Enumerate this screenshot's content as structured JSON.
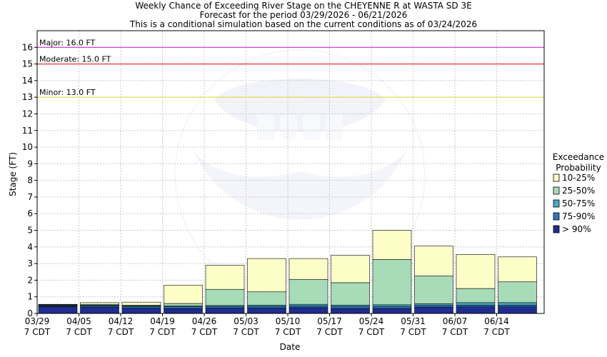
{
  "chart_data": {
    "type": "bar",
    "stacked": true,
    "title_lines": [
      "Weekly Chance of Exceeding River Stage on the CHEYENNE R at WASTA SD 3E",
      "Forecast for the period 03/29/2026 - 06/21/2026",
      "This is a conditional simulation based on the current conditions as of 03/24/2026"
    ],
    "xlabel": "Date",
    "ylabel": "Stage (FT)",
    "ylim": [
      0,
      17
    ],
    "yticks": [
      0,
      1,
      2,
      3,
      4,
      5,
      6,
      7,
      8,
      9,
      10,
      11,
      12,
      13,
      14,
      15,
      16
    ],
    "grid": true,
    "categories": [
      [
        "03/29",
        "7 CDT"
      ],
      [
        "04/05",
        "7 CDT"
      ],
      [
        "04/12",
        "7 CDT"
      ],
      [
        "04/19",
        "7 CDT"
      ],
      [
        "04/26",
        "7 CDT"
      ],
      [
        "05/03",
        "7 CDT"
      ],
      [
        "05/10",
        "7 CDT"
      ],
      [
        "05/17",
        "7 CDT"
      ],
      [
        "05/24",
        "7 CDT"
      ],
      [
        "05/31",
        "7 CDT"
      ],
      [
        "06/07",
        "7 CDT"
      ],
      [
        "06/14",
        "7 CDT"
      ]
    ],
    "thresholds": [
      {
        "label": "Major: 16.0 FT",
        "value": 16.0,
        "color": "#cc33cc"
      },
      {
        "label": "Moderate: 15.0 FT",
        "value": 15.0,
        "color": "#e0303a"
      },
      {
        "label": "Minor: 13.0 FT",
        "value": 13.0,
        "color": "#e6d84a"
      }
    ],
    "legend_title_lines": [
      "Exceedance",
      "Probability"
    ],
    "legend_position": "right",
    "series": [
      {
        "name": "> 90%",
        "color": "#1f2d8f",
        "values": [
          0.42,
          0.38,
          0.32,
          0.3,
          0.32,
          0.32,
          0.35,
          0.3,
          0.3,
          0.38,
          0.4,
          0.4
        ]
      },
      {
        "name": "75-90%",
        "color": "#2f76b8",
        "values": [
          0.45,
          0.45,
          0.4,
          0.4,
          0.42,
          0.42,
          0.45,
          0.42,
          0.42,
          0.48,
          0.5,
          0.5
        ]
      },
      {
        "name": "50-75%",
        "color": "#4aa8c0",
        "values": [
          0.5,
          0.5,
          0.45,
          0.45,
          0.48,
          0.5,
          0.55,
          0.5,
          0.52,
          0.58,
          0.65,
          0.65
        ]
      },
      {
        "name": "25-50%",
        "color": "#a8dbb7",
        "values": [
          0.52,
          0.55,
          0.5,
          0.6,
          1.45,
          1.3,
          2.05,
          1.85,
          3.25,
          2.25,
          1.5,
          1.9
        ]
      },
      {
        "name": "10-25%",
        "color": "#fdfdc8",
        "values": [
          0.55,
          0.65,
          0.68,
          1.7,
          2.9,
          3.3,
          3.3,
          3.5,
          5.0,
          4.05,
          3.55,
          3.4
        ]
      }
    ]
  }
}
